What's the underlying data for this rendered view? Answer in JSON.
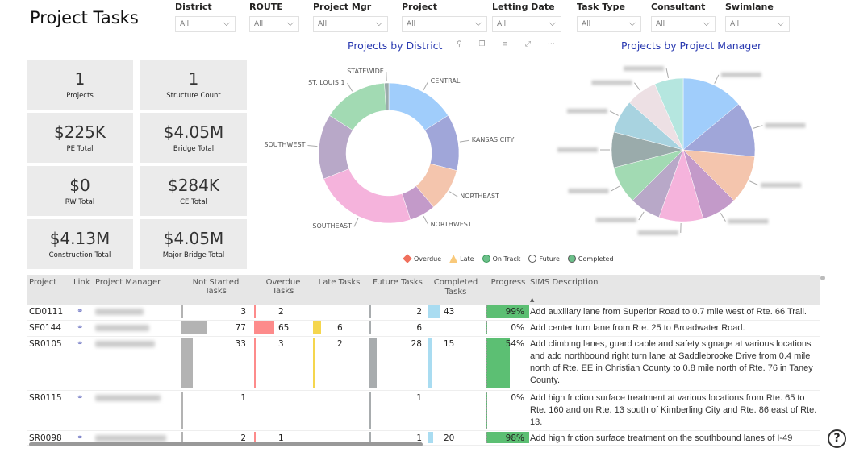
{
  "title": "Project Tasks",
  "filters": [
    {
      "label": "District",
      "value": "All"
    },
    {
      "label": "ROUTE",
      "value": "All"
    },
    {
      "label": "Project Mgr",
      "value": "All"
    },
    {
      "label": "Project",
      "value": "All"
    },
    {
      "label": "Letting Date",
      "value": "All"
    },
    {
      "label": "Task Type",
      "value": "All"
    },
    {
      "label": "Consultant",
      "value": "All"
    },
    {
      "label": "Swimlane",
      "value": "All"
    }
  ],
  "cards": [
    {
      "value": "1",
      "label": "Projects"
    },
    {
      "value": "1",
      "label": "Structure Count"
    },
    {
      "value": "$225K",
      "label": "PE Total"
    },
    {
      "value": "$4.05M",
      "label": "Bridge Total"
    },
    {
      "value": "$0",
      "label": "RW Total"
    },
    {
      "value": "$284K",
      "label": "CE Total"
    },
    {
      "value": "$4.13M",
      "label": "Construction Total"
    },
    {
      "value": "$4.05M",
      "label": "Major Bridge Total"
    }
  ],
  "chart_data": [
    {
      "type": "pie",
      "donut": true,
      "title": "Projects by District",
      "categories": [
        "CENTRAL",
        "KANSAS CITY",
        "NORTHEAST",
        "NORTHWEST",
        "SOUTHEAST",
        "SOUTHWEST",
        "ST. LOUIS 1",
        "STATEWIDE"
      ],
      "values": [
        16,
        13,
        10,
        6,
        24,
        15,
        15,
        1
      ],
      "colors": [
        "#a0cdfb",
        "#a0a6d9",
        "#f4c5ad",
        "#c39ac9",
        "#f5b3dc",
        "#b8a8c8",
        "#a2dab3",
        "#9aabab"
      ]
    },
    {
      "type": "pie",
      "title": "Projects by Project Manager",
      "values": [
        14,
        12.5,
        11,
        8,
        10,
        7,
        8.5,
        8,
        7.5,
        7,
        6.5
      ],
      "colors": [
        "#a0cdfb",
        "#a0a6d9",
        "#f4c5ad",
        "#c39ac9",
        "#f5b3dc",
        "#b8a8c8",
        "#a2dab3",
        "#9aabab",
        "#a8d3e0",
        "#ede0e4",
        "#b5e6df"
      ]
    }
  ],
  "legend": [
    {
      "label": "Overdue",
      "color": "#f0705d",
      "shape": "diamond"
    },
    {
      "label": "Late",
      "color": "#f9c97a",
      "shape": "triangle"
    },
    {
      "label": "On Track",
      "color": "#6cc08a",
      "shape": "circle"
    },
    {
      "label": "Future",
      "color": "#ffffff",
      "shape": "circle"
    },
    {
      "label": "Completed",
      "color": "#6cc08a",
      "shape": "check-circle"
    }
  ],
  "table": {
    "columns": [
      "Project",
      "Link",
      "Project Manager",
      "Not Started Tasks",
      "Overdue Tasks",
      "Late Tasks",
      "Future Tasks",
      "Completed Tasks",
      "Progress",
      "SIMS Description"
    ],
    "rows": [
      {
        "project": "CD0111",
        "not_started": 3,
        "overdue": 2,
        "late": null,
        "future": 2,
        "completed": 43,
        "progress": 99,
        "desc": "Add auxiliary lane from Superior Road to 0.7 mile west of Rte. 66 Trail."
      },
      {
        "project": "SE0144",
        "not_started": 77,
        "overdue": 65,
        "late": 6,
        "future": 6,
        "completed": null,
        "progress": 0,
        "desc": "Add center turn lane from Rte. 25 to Broadwater Road."
      },
      {
        "project": "SR0105",
        "not_started": 33,
        "overdue": 3,
        "late": 2,
        "future": 28,
        "completed": 15,
        "progress": 54,
        "desc": "Add climbing lanes, guard cable and safety signage at various locations and add northbound right turn lane at Saddlebrooke Drive from 0.4 mile north of Rte. EE in Christian County to 0.8 mile north of Rte. 76 in Taney County."
      },
      {
        "project": "SR0115",
        "not_started": 1,
        "overdue": null,
        "late": null,
        "future": 1,
        "completed": null,
        "progress": 0,
        "desc": "Add high friction surface treatment at various locations from Rte. 65 to Rte. 160 and on Rte. 13 south of Kimberling City and Rte. 86 east of Rte. 13."
      },
      {
        "project": "SR0098",
        "not_started": 2,
        "overdue": 1,
        "late": null,
        "future": 1,
        "completed": 20,
        "progress": 98,
        "desc": "Add high friction surface treatment on the southbound lanes of I-49"
      }
    ]
  },
  "colors": {
    "not_started": "#b3b3b3",
    "overdue": "#fd8b8b",
    "late": "#f5d64e",
    "future": "#a8acae",
    "completed": "#a9dcf1",
    "progress": "#5cbf73"
  },
  "help": "?"
}
